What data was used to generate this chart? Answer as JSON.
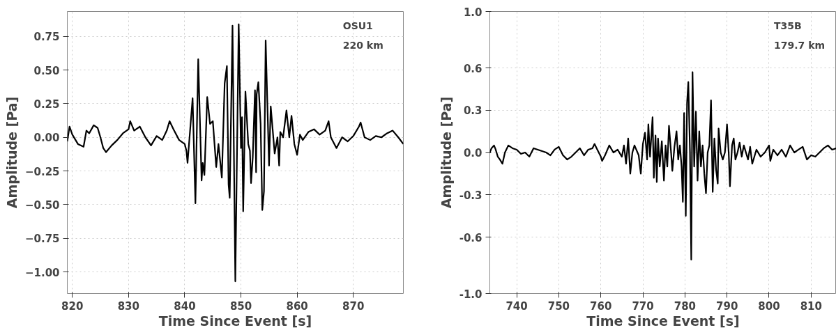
{
  "chart_data": [
    {
      "type": "line",
      "xlabel": "Time Since Event [s]",
      "ylabel": "Amplitude [Pa]",
      "annotations": [
        "OSU1",
        "220 km"
      ],
      "grid": true,
      "line_style": "solid",
      "xlim": [
        819.1,
        878.9
      ],
      "ylim": [
        -1.16,
        0.935
      ],
      "xticks": [
        820,
        830,
        840,
        850,
        860,
        870
      ],
      "yticks": [
        {
          "value": -1.0,
          "label": "−1.00"
        },
        {
          "value": -0.75,
          "label": "−0.75"
        },
        {
          "value": -0.5,
          "label": "−0.50"
        },
        {
          "value": -0.25,
          "label": "−0.25"
        },
        {
          "value": 0.0,
          "label": "0.00"
        },
        {
          "value": 0.25,
          "label": "0.25"
        },
        {
          "value": 0.5,
          "label": "0.50"
        },
        {
          "value": 0.75,
          "label": "0.75"
        }
      ],
      "x": [
        819.1,
        819.5,
        820,
        821,
        822,
        822.5,
        823,
        823.8,
        824.5,
        825,
        825.5,
        826,
        827,
        828,
        829,
        830,
        830.3,
        831,
        832,
        833,
        834,
        835,
        836,
        836.8,
        837.3,
        838,
        839,
        840,
        840.3,
        840.5,
        841.4,
        841.9,
        842.4,
        843.0,
        843.2,
        843.5,
        844.0,
        844.5,
        845,
        845.3,
        845.6,
        846,
        846.6,
        847.1,
        847.5,
        847.8,
        848.0,
        848.5,
        849.0,
        849.6,
        850.0,
        850.2,
        850.4,
        850.8,
        851.3,
        851.6,
        851.8,
        852.1,
        852.5,
        852.7,
        852.8,
        853.1,
        853.5,
        853.8,
        854.1,
        854.4,
        855.0,
        855.3,
        856,
        856.5,
        856.8,
        857,
        857.5,
        858.1,
        858.6,
        859,
        859.5,
        860,
        860.5,
        861,
        862,
        863,
        864,
        865,
        865.6,
        866,
        867,
        868,
        869,
        870,
        871,
        871.3,
        872,
        873,
        874,
        875,
        876,
        877,
        878,
        878.9
      ],
      "series": [
        {
          "color": "#000000",
          "values": [
            -0.03,
            0.08,
            0.02,
            -0.05,
            -0.07,
            0.05,
            0.03,
            0.09,
            0.07,
            0.0,
            -0.08,
            -0.11,
            -0.06,
            -0.02,
            0.03,
            0.06,
            0.12,
            0.05,
            0.08,
            0.0,
            -0.06,
            0.01,
            -0.02,
            0.05,
            0.12,
            0.06,
            -0.02,
            -0.05,
            -0.1,
            -0.19,
            0.29,
            -0.49,
            0.58,
            -0.32,
            -0.19,
            -0.28,
            0.3,
            0.1,
            0.12,
            -0.05,
            -0.22,
            -0.05,
            -0.3,
            0.4,
            0.53,
            -0.35,
            -0.45,
            0.83,
            -1.07,
            0.84,
            -0.08,
            0.15,
            -0.55,
            0.34,
            -0.05,
            -0.1,
            -0.34,
            -0.15,
            0.35,
            -0.26,
            0.32,
            0.41,
            0.1,
            -0.54,
            -0.4,
            0.72,
            -0.21,
            0.23,
            -0.12,
            0.0,
            -0.21,
            0.04,
            0.0,
            0.2,
            0.0,
            0.16,
            -0.05,
            -0.13,
            0.02,
            -0.02,
            0.04,
            0.06,
            0.02,
            0.05,
            0.12,
            0.0,
            -0.08,
            0.0,
            -0.03,
            0.01,
            0.08,
            0.11,
            0.0,
            -0.02,
            0.01,
            0.0,
            0.03,
            0.05,
            0.0,
            -0.05
          ]
        }
      ]
    },
    {
      "type": "line",
      "xlabel": "Time Since Event [s]",
      "ylabel": "Amplitude [Pa]",
      "annotations": [
        "T35B",
        "179.7 km"
      ],
      "grid": true,
      "line_style": "solid",
      "xlim": [
        733.6,
        816.0
      ],
      "ylim": [
        -1.0,
        1.0
      ],
      "xticks": [
        740,
        750,
        760,
        770,
        780,
        790,
        800,
        810
      ],
      "yticks": [
        {
          "value": -1.0,
          "label": "-1.0"
        },
        {
          "value": -0.6,
          "label": "-0.6"
        },
        {
          "value": -0.3,
          "label": "-0.3"
        },
        {
          "value": 0.0,
          "label": "0.0"
        },
        0.3,
        0.6,
        {
          "value": 1.0,
          "label": "1.0"
        }
      ],
      "x": [
        733.6,
        734,
        734.6,
        735,
        735.5,
        736,
        736.6,
        737.2,
        738,
        739,
        740,
        741,
        742,
        743,
        744,
        745,
        746,
        747,
        748,
        749,
        750,
        751,
        752,
        753,
        754,
        755,
        756,
        757,
        758,
        758.5,
        759,
        760,
        760.3,
        761,
        762,
        763,
        764,
        765,
        765.5,
        766,
        766.5,
        767,
        767.5,
        768,
        769,
        769.5,
        770,
        770.5,
        771,
        771.3,
        771.7,
        772.3,
        772.6,
        773,
        773.3,
        773.6,
        774,
        774.5,
        775,
        775.4,
        775.8,
        776.2,
        776.7,
        777,
        777.5,
        778,
        778.4,
        778.8,
        779.2,
        779.5,
        779.8,
        780.2,
        780.5,
        780.8,
        781.2,
        781.5,
        781.8,
        782.2,
        782.6,
        783,
        783.4,
        783.8,
        784.2,
        784.6,
        785,
        785.4,
        785.8,
        786.2,
        786.6,
        787,
        787.4,
        787.8,
        788,
        788.5,
        789,
        789.5,
        790,
        790.4,
        790.7,
        791.2,
        791.6,
        792,
        792.5,
        793,
        793.5,
        794,
        795,
        795.5,
        796,
        797,
        798,
        799,
        800,
        800.3,
        801,
        802,
        803,
        804,
        805,
        806,
        807,
        808,
        809,
        810,
        811,
        812,
        813,
        814,
        815,
        816
      ],
      "series": [
        {
          "color": "#000000",
          "values": [
            0.0,
            0.03,
            0.05,
            0.02,
            -0.03,
            -0.05,
            -0.08,
            0.0,
            0.05,
            0.03,
            0.02,
            -0.01,
            0.0,
            -0.03,
            0.03,
            0.02,
            0.01,
            0.0,
            -0.02,
            0.02,
            0.04,
            -0.02,
            -0.05,
            -0.03,
            0.0,
            0.03,
            -0.02,
            0.02,
            0.03,
            0.06,
            0.03,
            -0.03,
            -0.06,
            -0.02,
            0.05,
            0.0,
            0.02,
            -0.03,
            0.05,
            -0.08,
            0.1,
            -0.15,
            0.0,
            0.05,
            -0.02,
            -0.15,
            0.06,
            0.14,
            -0.05,
            0.2,
            -0.03,
            0.25,
            -0.18,
            0.12,
            -0.21,
            0.1,
            -0.1,
            0.08,
            -0.2,
            0.05,
            -0.1,
            0.19,
            0.0,
            -0.13,
            0.04,
            0.15,
            -0.05,
            0.05,
            -0.1,
            -0.35,
            0.28,
            -0.45,
            0.35,
            0.5,
            0.0,
            -0.76,
            0.57,
            -0.1,
            0.29,
            -0.2,
            0.15,
            -0.1,
            0.05,
            -0.15,
            -0.29,
            0.0,
            0.05,
            0.37,
            -0.28,
            0.1,
            -0.12,
            -0.22,
            0.17,
            0.0,
            -0.05,
            0.0,
            0.2,
            0.0,
            -0.24,
            0.05,
            0.1,
            -0.05,
            0.0,
            0.07,
            -0.03,
            0.05,
            -0.05,
            0.04,
            -0.08,
            0.02,
            -0.03,
            0.0,
            0.05,
            -0.06,
            0.02,
            -0.02,
            0.02,
            -0.03,
            0.05,
            0.0,
            0.02,
            0.04,
            -0.05,
            -0.02,
            -0.03,
            0.0,
            0.03,
            0.05,
            0.02,
            0.03
          ]
        }
      ]
    }
  ]
}
